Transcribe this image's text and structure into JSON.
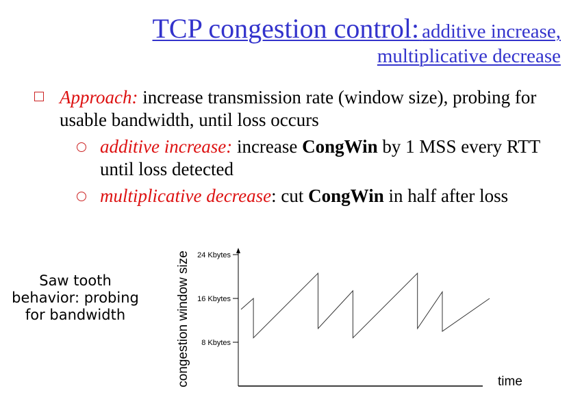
{
  "title": {
    "main": "TCP congestion control:",
    "sub_line1": "additive increase,",
    "sub_line2": "multiplicative decrease"
  },
  "bullets": {
    "approach_term": "Approach:",
    "approach_text": " increase transmission rate (window size), probing for usable bandwidth, until loss occurs",
    "additive_term": "additive increase:",
    "additive_text1": " increase  ",
    "additive_bold": "CongWin",
    "additive_text2": " by 1 MSS every RTT until loss detected",
    "mult_term": "multiplicative decrease",
    "mult_text1": ": cut ",
    "mult_bold": "CongWin",
    "mult_text2": " in half after loss"
  },
  "side_note": "Saw tooth behavior: probing for bandwidth",
  "chart_data": {
    "type": "line",
    "ylabel": "congestion window size",
    "xlabel": "time",
    "yticks": [
      {
        "value": 24,
        "label": "24 Kbytes"
      },
      {
        "value": 16,
        "label": "16 Kbytes"
      },
      {
        "value": 8,
        "label": "8 Kbytes"
      }
    ],
    "ylim": [
      0,
      26
    ],
    "xlim": [
      0,
      100
    ],
    "series": [
      {
        "points": [
          {
            "x": 0,
            "y": 14
          },
          {
            "x": 5,
            "y": 16
          },
          {
            "x": 5,
            "y": 8.8
          },
          {
            "x": 31,
            "y": 20.6
          },
          {
            "x": 31,
            "y": 10.5
          },
          {
            "x": 45,
            "y": 17.4
          },
          {
            "x": 45,
            "y": 8.8
          },
          {
            "x": 71,
            "y": 20.6
          },
          {
            "x": 71,
            "y": 10.5
          },
          {
            "x": 81,
            "y": 17.2
          },
          {
            "x": 81,
            "y": 10
          },
          {
            "x": 100,
            "y": 16
          }
        ]
      }
    ],
    "grid": false,
    "legend": "none"
  }
}
